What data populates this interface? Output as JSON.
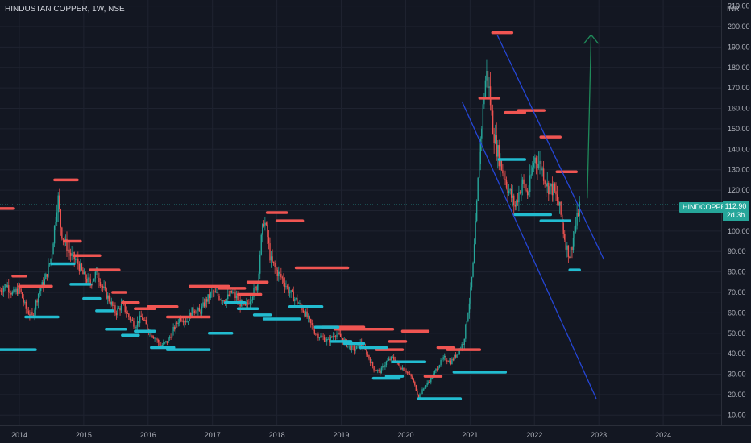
{
  "header": {
    "symbol": "HINDUSTAN COPPER",
    "interval": "1W",
    "exchange": "NSE",
    "text": "HINDUSTAN COPPER, 1W, NSE"
  },
  "price_scale": {
    "currency": "INR"
  },
  "last_price": {
    "ticker_label": "HINDCOPPER",
    "value": "112.90",
    "countdown": "2d 3h"
  },
  "colors": {
    "background": "#131722",
    "up": "#26a69a",
    "down": "#ef5350",
    "resistance": "#f05552",
    "support": "#22bcd0",
    "channel": "#2546d6",
    "arrow": "#1f8a5a",
    "grid": "#1f2330"
  },
  "chart_data": {
    "type": "candlestick",
    "title": "HINDUSTAN COPPER, 1W, NSE",
    "y_axis": {
      "unit": "INR",
      "ticks": [
        "10.00",
        "20.00",
        "30.00",
        "40.00",
        "50.00",
        "60.00",
        "70.00",
        "80.00",
        "90.00",
        "100.00",
        "110.00",
        "120.00",
        "130.00",
        "140.00",
        "150.00",
        "160.00",
        "170.00",
        "180.00",
        "190.00",
        "200.00",
        "210.00"
      ],
      "range": [
        5,
        213
      ]
    },
    "x_axis": {
      "ticks": [
        "2014",
        "2015",
        "2016",
        "2017",
        "2018",
        "2019",
        "2020",
        "2021",
        "2022",
        "2023",
        "2024"
      ],
      "range": [
        2013.7,
        2024.9
      ]
    },
    "last_price": 112.9,
    "approx_weekly_close_path": [
      [
        2013.7,
        71
      ],
      [
        2013.8,
        74
      ],
      [
        2013.9,
        69
      ],
      [
        2014.0,
        72
      ],
      [
        2014.1,
        62
      ],
      [
        2014.2,
        58
      ],
      [
        2014.3,
        70
      ],
      [
        2014.4,
        76
      ],
      [
        2014.5,
        88
      ],
      [
        2014.55,
        103
      ],
      [
        2014.6,
        117
      ],
      [
        2014.65,
        100
      ],
      [
        2014.7,
        95
      ],
      [
        2014.8,
        88
      ],
      [
        2014.9,
        85
      ],
      [
        2015.0,
        78
      ],
      [
        2015.1,
        74
      ],
      [
        2015.2,
        80
      ],
      [
        2015.3,
        72
      ],
      [
        2015.4,
        66
      ],
      [
        2015.5,
        60
      ],
      [
        2015.6,
        64
      ],
      [
        2015.7,
        58
      ],
      [
        2015.8,
        54
      ],
      [
        2015.9,
        58
      ],
      [
        2016.0,
        52
      ],
      [
        2016.1,
        48
      ],
      [
        2016.2,
        44
      ],
      [
        2016.3,
        46
      ],
      [
        2016.4,
        52
      ],
      [
        2016.5,
        58
      ],
      [
        2016.6,
        56
      ],
      [
        2016.7,
        62
      ],
      [
        2016.8,
        60
      ],
      [
        2016.9,
        66
      ],
      [
        2017.0,
        70
      ],
      [
        2017.1,
        68
      ],
      [
        2017.2,
        66
      ],
      [
        2017.3,
        70
      ],
      [
        2017.4,
        66
      ],
      [
        2017.5,
        62
      ],
      [
        2017.6,
        68
      ],
      [
        2017.7,
        74
      ],
      [
        2017.75,
        94
      ],
      [
        2017.8,
        106
      ],
      [
        2017.85,
        98
      ],
      [
        2017.9,
        86
      ],
      [
        2018.0,
        80
      ],
      [
        2018.1,
        76
      ],
      [
        2018.2,
        70
      ],
      [
        2018.3,
        66
      ],
      [
        2018.4,
        62
      ],
      [
        2018.5,
        56
      ],
      [
        2018.6,
        50
      ],
      [
        2018.7,
        48
      ],
      [
        2018.8,
        46
      ],
      [
        2018.9,
        50
      ],
      [
        2019.0,
        48
      ],
      [
        2019.1,
        44
      ],
      [
        2019.2,
        42
      ],
      [
        2019.3,
        45
      ],
      [
        2019.4,
        40
      ],
      [
        2019.5,
        33
      ],
      [
        2019.6,
        31
      ],
      [
        2019.7,
        36
      ],
      [
        2019.8,
        38
      ],
      [
        2019.9,
        34
      ],
      [
        2020.0,
        32
      ],
      [
        2020.1,
        28
      ],
      [
        2020.2,
        19
      ],
      [
        2020.3,
        24
      ],
      [
        2020.4,
        28
      ],
      [
        2020.5,
        34
      ],
      [
        2020.6,
        38
      ],
      [
        2020.7,
        36
      ],
      [
        2020.8,
        40
      ],
      [
        2020.9,
        46
      ],
      [
        2021.0,
        68
      ],
      [
        2021.05,
        84
      ],
      [
        2021.1,
        110
      ],
      [
        2021.15,
        140
      ],
      [
        2021.2,
        160
      ],
      [
        2021.25,
        178
      ],
      [
        2021.3,
        168
      ],
      [
        2021.35,
        152
      ],
      [
        2021.4,
        142
      ],
      [
        2021.5,
        130
      ],
      [
        2021.6,
        120
      ],
      [
        2021.7,
        112
      ],
      [
        2021.8,
        124
      ],
      [
        2021.9,
        118
      ],
      [
        2022.0,
        136
      ],
      [
        2022.1,
        132
      ],
      [
        2022.2,
        122
      ],
      [
        2022.3,
        120
      ],
      [
        2022.4,
        110
      ],
      [
        2022.45,
        100
      ],
      [
        2022.5,
        92
      ],
      [
        2022.55,
        88
      ],
      [
        2022.6,
        96
      ],
      [
        2022.65,
        104
      ],
      [
        2022.7,
        112.9
      ]
    ],
    "resistance_levels": [
      {
        "x": [
          2013.7,
          2013.9
        ],
        "y": 111
      },
      {
        "x": [
          2013.9,
          2014.1
        ],
        "y": 78
      },
      {
        "x": [
          2014.0,
          2014.5
        ],
        "y": 73
      },
      {
        "x": [
          2014.55,
          2014.9
        ],
        "y": 125
      },
      {
        "x": [
          2014.7,
          2014.95
        ],
        "y": 95
      },
      {
        "x": [
          2014.85,
          2015.25
        ],
        "y": 88
      },
      {
        "x": [
          2015.1,
          2015.55
        ],
        "y": 81
      },
      {
        "x": [
          2015.45,
          2015.65
        ],
        "y": 70
      },
      {
        "x": [
          2015.6,
          2015.85
        ],
        "y": 65
      },
      {
        "x": [
          2015.8,
          2016.1
        ],
        "y": 62
      },
      {
        "x": [
          2016.0,
          2016.45
        ],
        "y": 63
      },
      {
        "x": [
          2016.3,
          2016.95
        ],
        "y": 58
      },
      {
        "x": [
          2016.65,
          2017.25
        ],
        "y": 73
      },
      {
        "x": [
          2017.1,
          2017.5
        ],
        "y": 72
      },
      {
        "x": [
          2017.4,
          2017.75
        ],
        "y": 69
      },
      {
        "x": [
          2017.55,
          2017.85
        ],
        "y": 75
      },
      {
        "x": [
          2017.85,
          2018.15
        ],
        "y": 109
      },
      {
        "x": [
          2018.0,
          2018.4
        ],
        "y": 105
      },
      {
        "x": [
          2018.3,
          2019.1
        ],
        "y": 82
      },
      {
        "x": [
          2018.7,
          2019.35
        ],
        "y": 53
      },
      {
        "x": [
          2018.9,
          2019.8
        ],
        "y": 52
      },
      {
        "x": [
          2019.55,
          2019.95
        ],
        "y": 42
      },
      {
        "x": [
          2019.75,
          2020.0
        ],
        "y": 46
      },
      {
        "x": [
          2019.95,
          2020.35
        ],
        "y": 51
      },
      {
        "x": [
          2020.3,
          2020.55
        ],
        "y": 29
      },
      {
        "x": [
          2020.5,
          2020.75
        ],
        "y": 43
      },
      {
        "x": [
          2020.65,
          2021.15
        ],
        "y": 42
      },
      {
        "x": [
          2021.15,
          2021.45
        ],
        "y": 165
      },
      {
        "x": [
          2021.35,
          2021.65
        ],
        "y": 197
      },
      {
        "x": [
          2021.55,
          2021.85
        ],
        "y": 158
      },
      {
        "x": [
          2021.75,
          2022.15
        ],
        "y": 159
      },
      {
        "x": [
          2022.1,
          2022.4
        ],
        "y": 146
      },
      {
        "x": [
          2022.35,
          2022.65
        ],
        "y": 129
      }
    ],
    "support_levels": [
      {
        "x": [
          2013.7,
          2014.25
        ],
        "y": 42
      },
      {
        "x": [
          2014.1,
          2014.6
        ],
        "y": 58
      },
      {
        "x": [
          2014.5,
          2014.85
        ],
        "y": 84
      },
      {
        "x": [
          2014.8,
          2015.1
        ],
        "y": 74
      },
      {
        "x": [
          2015.0,
          2015.25
        ],
        "y": 67
      },
      {
        "x": [
          2015.2,
          2015.45
        ],
        "y": 61
      },
      {
        "x": [
          2015.35,
          2015.65
        ],
        "y": 52
      },
      {
        "x": [
          2015.6,
          2015.85
        ],
        "y": 49
      },
      {
        "x": [
          2015.8,
          2016.1
        ],
        "y": 51
      },
      {
        "x": [
          2016.05,
          2016.4
        ],
        "y": 43
      },
      {
        "x": [
          2016.3,
          2016.95
        ],
        "y": 42
      },
      {
        "x": [
          2016.95,
          2017.3
        ],
        "y": 50
      },
      {
        "x": [
          2017.2,
          2017.5
        ],
        "y": 65
      },
      {
        "x": [
          2017.4,
          2017.7
        ],
        "y": 62
      },
      {
        "x": [
          2017.65,
          2017.9
        ],
        "y": 59
      },
      {
        "x": [
          2017.8,
          2018.35
        ],
        "y": 57
      },
      {
        "x": [
          2018.2,
          2018.7
        ],
        "y": 63
      },
      {
        "x": [
          2018.6,
          2018.95
        ],
        "y": 53
      },
      {
        "x": [
          2018.85,
          2019.15
        ],
        "y": 46
      },
      {
        "x": [
          2019.05,
          2019.35
        ],
        "y": 45
      },
      {
        "x": [
          2019.3,
          2019.7
        ],
        "y": 43
      },
      {
        "x": [
          2019.5,
          2019.9
        ],
        "y": 28
      },
      {
        "x": [
          2019.7,
          2019.95
        ],
        "y": 29
      },
      {
        "x": [
          2019.8,
          2020.3
        ],
        "y": 36
      },
      {
        "x": [
          2020.2,
          2020.85
        ],
        "y": 18
      },
      {
        "x": [
          2020.75,
          2021.55
        ],
        "y": 31
      },
      {
        "x": [
          2021.45,
          2021.85
        ],
        "y": 135
      },
      {
        "x": [
          2021.7,
          2022.25
        ],
        "y": 108
      },
      {
        "x": [
          2022.1,
          2022.55
        ],
        "y": 105
      },
      {
        "x": [
          2022.55,
          2022.7
        ],
        "y": 81
      }
    ],
    "channel_lines": [
      {
        "from": [
          2021.42,
          196
        ],
        "to": [
          2023.08,
          86
        ]
      },
      {
        "from": [
          2020.88,
          163
        ],
        "to": [
          2022.96,
          18
        ]
      }
    ],
    "arrow": {
      "from": [
        2022.82,
        116
      ],
      "to": [
        2022.88,
        196
      ]
    },
    "last_price_line": 112.9
  }
}
